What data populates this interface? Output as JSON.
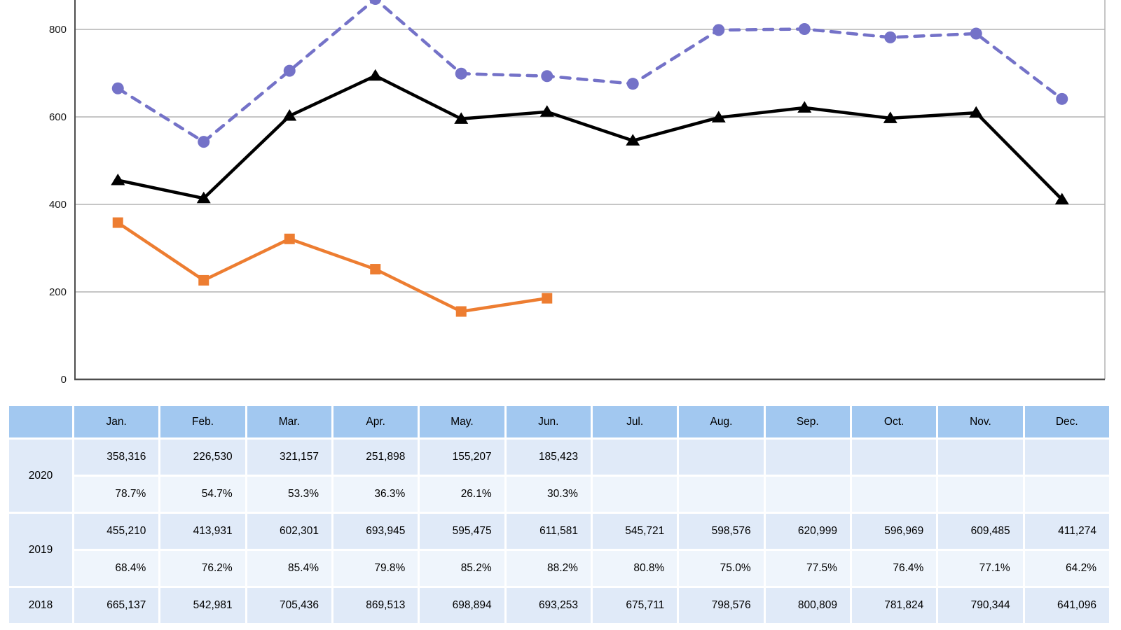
{
  "chart_data": {
    "type": "line",
    "title": "",
    "xlabel": "",
    "ylabel": "",
    "categories": [
      "Jan.",
      "Feb.",
      "Mar.",
      "Apr.",
      "May.",
      "Jun.",
      "Jul.",
      "Aug.",
      "Sep.",
      "Oct.",
      "Nov.",
      "Dec."
    ],
    "series": [
      {
        "name": "2018",
        "style": "dashed",
        "marker": "circle",
        "color": "#7472C8",
        "values": [
          665137,
          542981,
          705436,
          869513,
          698894,
          693253,
          675711,
          798576,
          800809,
          781824,
          790344,
          641096
        ]
      },
      {
        "name": "2019",
        "style": "solid",
        "marker": "triangle",
        "color": "#000000",
        "values": [
          455210,
          413931,
          602301,
          693945,
          595475,
          611581,
          545721,
          598576,
          620999,
          596969,
          609485,
          411274
        ]
      },
      {
        "name": "2020",
        "style": "solid",
        "marker": "square",
        "color": "#ED7D31",
        "values": [
          358316,
          226530,
          321157,
          251898,
          155207,
          185423
        ]
      }
    ],
    "y_ticks": [
      0,
      200,
      400,
      600,
      800
    ],
    "y_tick_labels": [
      "0",
      "200",
      "400",
      "600",
      "800"
    ],
    "y_axis_values_in": "thousands",
    "ylim": [
      0,
      870
    ],
    "grid": true,
    "legend": "none"
  },
  "table": {
    "corner_label": "",
    "months": [
      "Jan.",
      "Feb.",
      "Mar.",
      "Apr.",
      "May.",
      "Jun.",
      "Jul.",
      "Aug.",
      "Sep.",
      "Oct.",
      "Nov.",
      "Dec."
    ],
    "rows": [
      {
        "year": "2020",
        "series": "2020",
        "percents": [
          "78.7%",
          "54.7%",
          "53.3%",
          "36.3%",
          "26.1%",
          "30.3%"
        ]
      },
      {
        "year": "2019",
        "series": "2019",
        "percents": [
          "68.4%",
          "76.2%",
          "85.4%",
          "79.8%",
          "85.2%",
          "88.2%",
          "80.8%",
          "75.0%",
          "77.5%",
          "76.4%",
          "77.1%",
          "64.2%"
        ]
      },
      {
        "year": "2018",
        "series": "2018",
        "percents": null
      }
    ]
  },
  "style": {
    "header_bg": "#A2C8F0",
    "value_row_bg": "#E0EAF8",
    "percent_row_bg": "#EFF5FC",
    "grid_color": "#B4B4B4",
    "axis_color": "#4D4D4D",
    "plot_border_color": "#B4B4B4",
    "text_color": "#000000"
  }
}
